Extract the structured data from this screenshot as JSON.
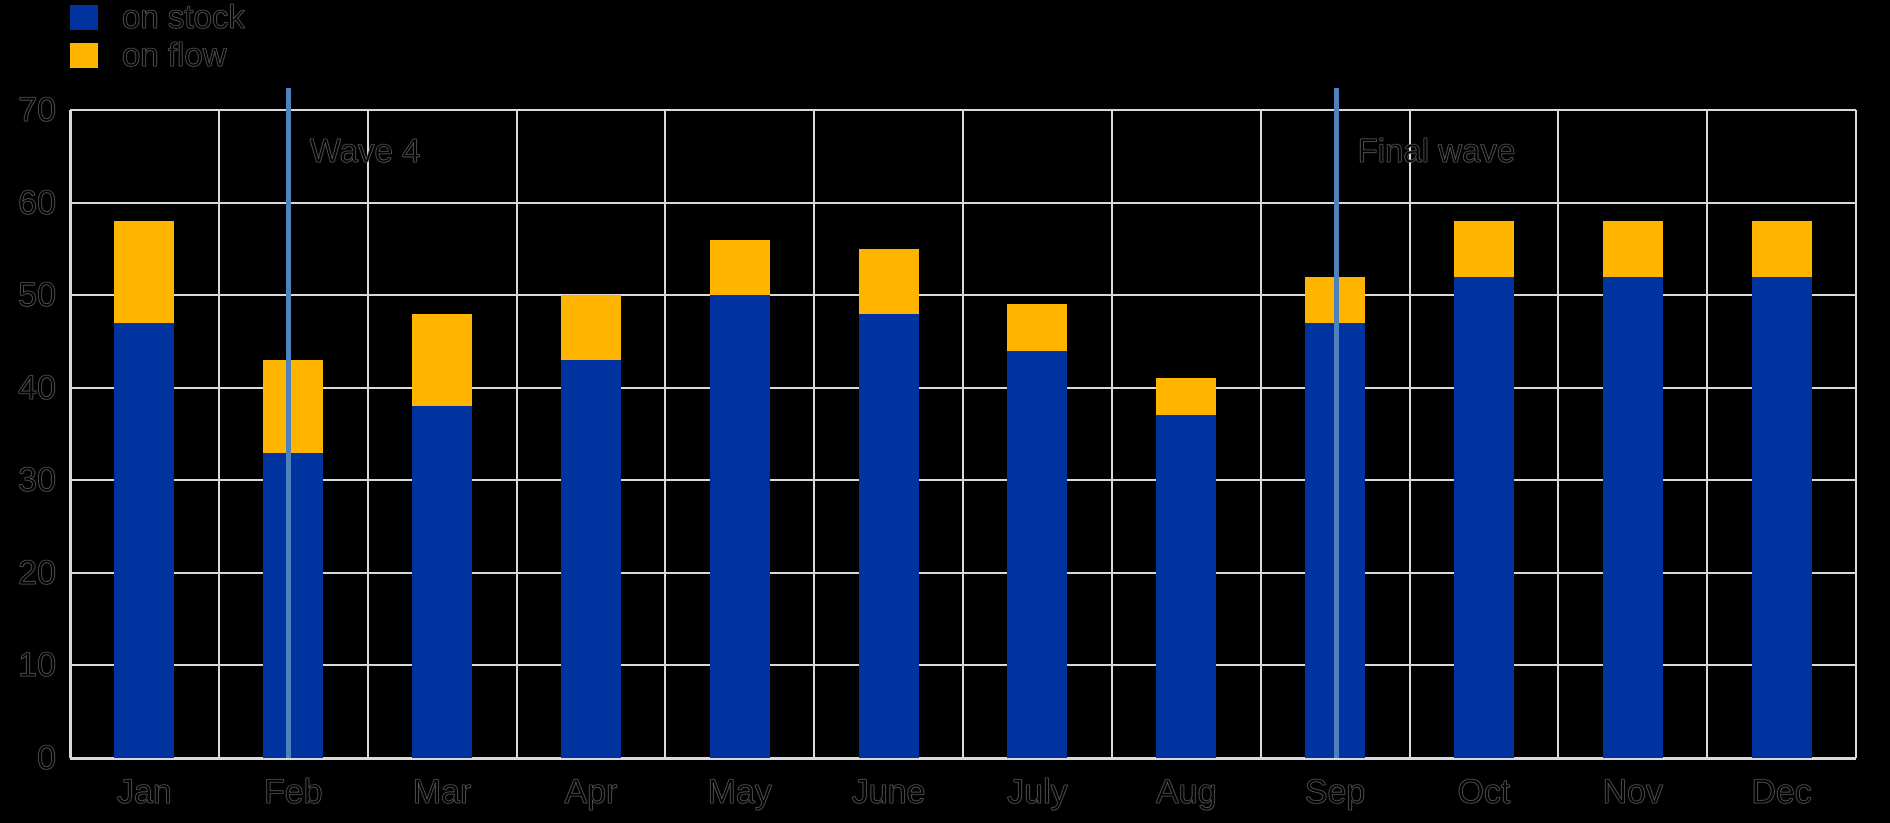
{
  "colors": {
    "background": "#000000",
    "gridline": "#d9d9d9",
    "text": "#000000",
    "stock_blue": "#0033A0",
    "flow_orange": "#FFB400",
    "annotation_line": "#4F81BD"
  },
  "legend": {
    "items": [
      {
        "label": "on stock",
        "color": "#0033A0"
      },
      {
        "label": "on flow",
        "color": "#FFB400"
      }
    ]
  },
  "chart_data": {
    "type": "bar",
    "stacked": true,
    "title": "",
    "xlabel": "",
    "ylabel": "",
    "categories": [
      "Jan",
      "Feb",
      "Mar",
      "Apr",
      "May",
      "June",
      "July",
      "Aug",
      "Sep",
      "Oct",
      "Nov",
      "Dec"
    ],
    "series": [
      {
        "name": "on stock",
        "color": "#0033A0",
        "values": [
          47,
          33,
          38,
          43,
          50,
          48,
          44,
          37,
          47,
          52,
          52,
          52
        ]
      },
      {
        "name": "on flow",
        "color": "#FFB400",
        "values": [
          11,
          10,
          10,
          7,
          6,
          7,
          5,
          4,
          5,
          6,
          6,
          6
        ]
      }
    ],
    "totals": [
      58,
      43,
      48,
      50,
      56,
      55,
      49,
      41,
      52,
      58,
      58,
      58
    ],
    "ylim": [
      0,
      70
    ],
    "yticks": [
      0,
      10,
      20,
      30,
      40,
      50,
      60,
      70
    ],
    "grid": true,
    "legend_position": "top-left",
    "annotations": [
      {
        "label": "Wave 4",
        "x_cells": 1.47,
        "line_color": "#4F81BD"
      },
      {
        "label": "Final wave",
        "x_cells": 8.51,
        "line_color": "#4F81BD"
      }
    ]
  }
}
